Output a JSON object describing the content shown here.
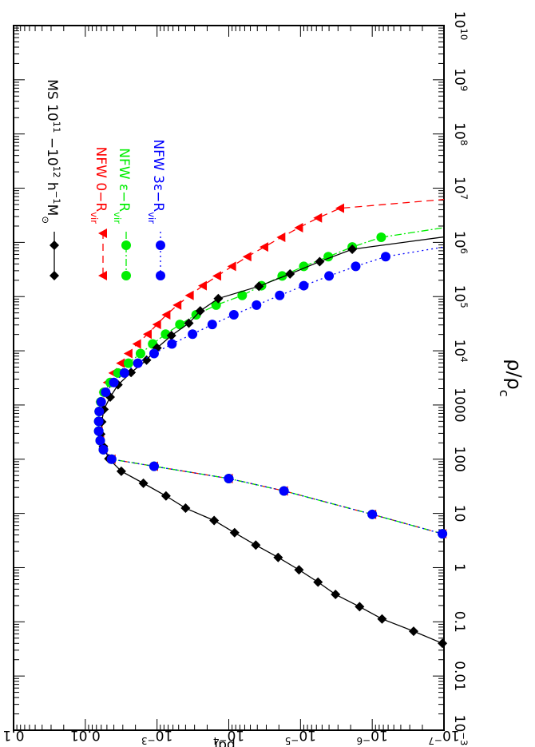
{
  "chart_data": {
    "type": "line",
    "orientation": "rotated-90-clockwise",
    "xlabel_main": "ρ/ρ",
    "xlabel_sub": "c",
    "ylabel": "pdf",
    "xscale": "log",
    "yscale": "log",
    "xlim": [
      0.001,
      10000000000
    ],
    "ylim": [
      1e-07,
      0.1
    ],
    "grid": false,
    "legend_position": "top-left",
    "x_tick_labels": [
      {
        "value": 0.001,
        "base": "10",
        "exp": "−3"
      },
      {
        "value": 0.01,
        "text": "0.01"
      },
      {
        "value": 0.1,
        "text": "0.1"
      },
      {
        "value": 1,
        "text": "1"
      },
      {
        "value": 10,
        "text": "10"
      },
      {
        "value": 100,
        "text": "100"
      },
      {
        "value": 1000,
        "text": "1000"
      },
      {
        "value": 10000,
        "base": "10",
        "exp": "4"
      },
      {
        "value": 100000,
        "base": "10",
        "exp": "5"
      },
      {
        "value": 1000000,
        "base": "10",
        "exp": "6"
      },
      {
        "value": 10000000,
        "base": "10",
        "exp": "7"
      },
      {
        "value": 100000000,
        "base": "10",
        "exp": "8"
      },
      {
        "value": 1000000000,
        "base": "10",
        "exp": "9"
      },
      {
        "value": 10000000000,
        "base": "10",
        "exp": "10"
      }
    ],
    "y_tick_labels": [
      {
        "value": 1e-07,
        "base": "10",
        "exp": "−7"
      },
      {
        "value": 1e-06,
        "base": "10",
        "exp": "−6"
      },
      {
        "value": 1e-05,
        "base": "10",
        "exp": "−5"
      },
      {
        "value": 0.0001,
        "base": "10",
        "exp": "−4"
      },
      {
        "value": 0.001,
        "base": "10",
        "exp": "−3"
      },
      {
        "value": 0.01,
        "text": "0.01"
      },
      {
        "value": 0.1,
        "text": "0.1"
      }
    ],
    "series": [
      {
        "legend": {
          "parts": [
            {
              "t": "MS  10"
            },
            {
              "t": "11",
              "sup": true
            },
            {
              "t": " −10"
            },
            {
              "t": "12",
              "sup": true
            },
            {
              "t": "  h"
            },
            {
              "t": "−1",
              "sup": true
            },
            {
              "t": "M"
            },
            {
              "t": "⊙",
              "sub": true
            }
          ]
        },
        "color": "#000000",
        "marker": "diamond",
        "dash": "",
        "x": [
          0.04,
          0.067,
          0.113,
          0.19,
          0.32,
          0.54,
          0.91,
          1.54,
          2.6,
          4.4,
          7.4,
          12.5,
          21,
          36,
          60,
          102,
          172,
          290,
          490,
          830,
          1400,
          2360,
          3980,
          6720,
          11300,
          19100,
          32300,
          54500,
          92000,
          155000,
          262000,
          442000,
          746000,
          1260000
        ],
        "y": [
          1.05e-07,
          2.65e-07,
          7.3e-07,
          1.5e-06,
          3.25e-06,
          5.7e-06,
          1.05e-05,
          2.05e-05,
          4.2e-05,
          8.3e-05,
          0.00016,
          0.0004,
          0.00075,
          0.00155,
          0.00315,
          0.0047,
          0.0056,
          0.0061,
          0.0059,
          0.0055,
          0.0045,
          0.0035,
          0.0023,
          0.0014,
          0.001,
          0.00063,
          0.00036,
          0.00025,
          0.00014,
          3.8e-05,
          1.4e-05,
          5.4e-06,
          1.9e-06,
          1e-07
        ]
      },
      {
        "legend": {
          "parts": [
            {
              "t": "NFW    0−R"
            },
            {
              "t": "vir",
              "sub": true
            }
          ]
        },
        "color": "#ff0000",
        "marker": "triangle",
        "dash": "9,6",
        "x": [
          4.2,
          9.6,
          26,
          44,
          74,
          100,
          150,
          220,
          330,
          500,
          760,
          1140,
          1720,
          2600,
          3900,
          5900,
          8900,
          13400,
          20300,
          30600,
          46100,
          69600,
          105000,
          159000,
          240000,
          361000,
          545000,
          823000,
          1240000,
          1870000,
          2830000,
          4260000,
          6200000
        ],
        "y": [
          1.05e-07,
          1e-06,
          1.7e-05,
          0.0001,
          0.0011,
          0.0043,
          0.0056,
          0.0062,
          0.0065,
          0.0065,
          0.0064,
          0.0062,
          0.0056,
          0.0049,
          0.0041,
          0.0032,
          0.0025,
          0.0019,
          0.00135,
          0.001,
          0.00074,
          0.00052,
          0.00035,
          0.00023,
          0.000145,
          9e-05,
          5.5e-05,
          3.2e-05,
          1.85e-05,
          1.05e-05,
          5.7e-06,
          2.8e-06,
          1e-07
        ]
      },
      {
        "legend": {
          "parts": [
            {
              "t": "NFW    ε−R"
            },
            {
              "t": "vir",
              "sub": true
            }
          ]
        },
        "color": "#00ee00",
        "marker": "circle",
        "dash": "9,3,2,3",
        "x": [
          4.2,
          9.6,
          26,
          44,
          74,
          100,
          150,
          220,
          330,
          500,
          760,
          1140,
          1720,
          2600,
          3900,
          5900,
          8900,
          13400,
          20300,
          30600,
          46100,
          69600,
          105000,
          159000,
          240000,
          361000,
          545000,
          823000,
          1240000,
          1870000
        ],
        "y": [
          1.05e-07,
          1e-06,
          1.7e-05,
          0.0001,
          0.0011,
          0.0043,
          0.0056,
          0.0062,
          0.0065,
          0.0065,
          0.0064,
          0.0061,
          0.0055,
          0.0045,
          0.0035,
          0.0025,
          0.0017,
          0.00115,
          0.00076,
          0.00048,
          0.000285,
          0.00015,
          6.5e-05,
          3.5e-05,
          1.8e-05,
          9e-06,
          4.1e-06,
          1.9e-06,
          7.5e-07,
          1e-07
        ]
      },
      {
        "legend": {
          "parts": [
            {
              "t": "NFW    3ε−R"
            },
            {
              "t": "vir",
              "sub": true
            }
          ]
        },
        "color": "#0000ff",
        "marker": "circle",
        "dash": "2,4",
        "x": [
          4.2,
          9.6,
          26,
          44,
          74,
          100,
          150,
          220,
          330,
          500,
          760,
          1140,
          1720,
          2600,
          3900,
          5900,
          8900,
          13400,
          20300,
          30600,
          46100,
          69600,
          105000,
          159000,
          240000,
          361000,
          545000,
          823000
        ],
        "y": [
          1.05e-07,
          1e-06,
          1.7e-05,
          0.0001,
          0.0011,
          0.0043,
          0.0056,
          0.0062,
          0.0065,
          0.0065,
          0.0064,
          0.006,
          0.0052,
          0.004,
          0.00285,
          0.00185,
          0.0011,
          0.00062,
          0.00032,
          0.00017,
          8.5e-05,
          4.1e-05,
          1.95e-05,
          9e-06,
          4e-06,
          1.7e-06,
          6.5e-07,
          1e-07
        ]
      }
    ]
  }
}
